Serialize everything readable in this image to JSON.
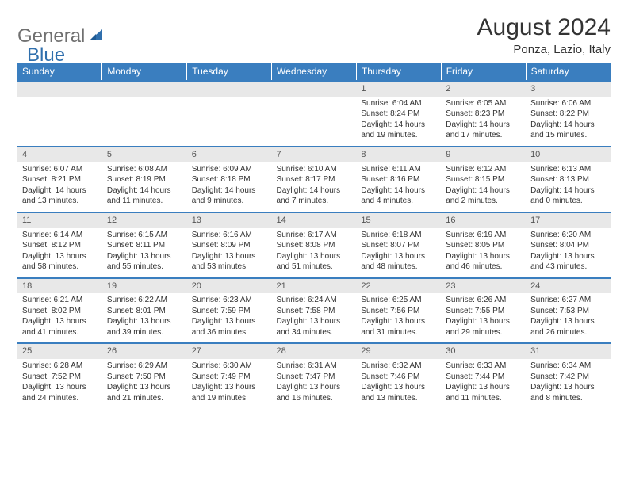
{
  "brand": {
    "part1": "General",
    "part2": "Blue"
  },
  "title": "August 2024",
  "location": "Ponza, Lazio, Italy",
  "colors": {
    "header_bg": "#3a7ebf",
    "header_text": "#ffffff",
    "daynum_bg": "#e8e8e8",
    "row_border": "#3a7ebf",
    "text": "#333333",
    "logo_gray": "#707070",
    "logo_blue": "#2f6fad"
  },
  "weekdays": [
    "Sunday",
    "Monday",
    "Tuesday",
    "Wednesday",
    "Thursday",
    "Friday",
    "Saturday"
  ],
  "weeks": [
    {
      "nums": [
        "",
        "",
        "",
        "",
        "1",
        "2",
        "3"
      ],
      "cells": [
        null,
        null,
        null,
        null,
        {
          "sr": "6:04 AM",
          "ss": "8:24 PM",
          "dl": "14 hours and 19 minutes."
        },
        {
          "sr": "6:05 AM",
          "ss": "8:23 PM",
          "dl": "14 hours and 17 minutes."
        },
        {
          "sr": "6:06 AM",
          "ss": "8:22 PM",
          "dl": "14 hours and 15 minutes."
        }
      ]
    },
    {
      "nums": [
        "4",
        "5",
        "6",
        "7",
        "8",
        "9",
        "10"
      ],
      "cells": [
        {
          "sr": "6:07 AM",
          "ss": "8:21 PM",
          "dl": "14 hours and 13 minutes."
        },
        {
          "sr": "6:08 AM",
          "ss": "8:19 PM",
          "dl": "14 hours and 11 minutes."
        },
        {
          "sr": "6:09 AM",
          "ss": "8:18 PM",
          "dl": "14 hours and 9 minutes."
        },
        {
          "sr": "6:10 AM",
          "ss": "8:17 PM",
          "dl": "14 hours and 7 minutes."
        },
        {
          "sr": "6:11 AM",
          "ss": "8:16 PM",
          "dl": "14 hours and 4 minutes."
        },
        {
          "sr": "6:12 AM",
          "ss": "8:15 PM",
          "dl": "14 hours and 2 minutes."
        },
        {
          "sr": "6:13 AM",
          "ss": "8:13 PM",
          "dl": "14 hours and 0 minutes."
        }
      ]
    },
    {
      "nums": [
        "11",
        "12",
        "13",
        "14",
        "15",
        "16",
        "17"
      ],
      "cells": [
        {
          "sr": "6:14 AM",
          "ss": "8:12 PM",
          "dl": "13 hours and 58 minutes."
        },
        {
          "sr": "6:15 AM",
          "ss": "8:11 PM",
          "dl": "13 hours and 55 minutes."
        },
        {
          "sr": "6:16 AM",
          "ss": "8:09 PM",
          "dl": "13 hours and 53 minutes."
        },
        {
          "sr": "6:17 AM",
          "ss": "8:08 PM",
          "dl": "13 hours and 51 minutes."
        },
        {
          "sr": "6:18 AM",
          "ss": "8:07 PM",
          "dl": "13 hours and 48 minutes."
        },
        {
          "sr": "6:19 AM",
          "ss": "8:05 PM",
          "dl": "13 hours and 46 minutes."
        },
        {
          "sr": "6:20 AM",
          "ss": "8:04 PM",
          "dl": "13 hours and 43 minutes."
        }
      ]
    },
    {
      "nums": [
        "18",
        "19",
        "20",
        "21",
        "22",
        "23",
        "24"
      ],
      "cells": [
        {
          "sr": "6:21 AM",
          "ss": "8:02 PM",
          "dl": "13 hours and 41 minutes."
        },
        {
          "sr": "6:22 AM",
          "ss": "8:01 PM",
          "dl": "13 hours and 39 minutes."
        },
        {
          "sr": "6:23 AM",
          "ss": "7:59 PM",
          "dl": "13 hours and 36 minutes."
        },
        {
          "sr": "6:24 AM",
          "ss": "7:58 PM",
          "dl": "13 hours and 34 minutes."
        },
        {
          "sr": "6:25 AM",
          "ss": "7:56 PM",
          "dl": "13 hours and 31 minutes."
        },
        {
          "sr": "6:26 AM",
          "ss": "7:55 PM",
          "dl": "13 hours and 29 minutes."
        },
        {
          "sr": "6:27 AM",
          "ss": "7:53 PM",
          "dl": "13 hours and 26 minutes."
        }
      ]
    },
    {
      "nums": [
        "25",
        "26",
        "27",
        "28",
        "29",
        "30",
        "31"
      ],
      "cells": [
        {
          "sr": "6:28 AM",
          "ss": "7:52 PM",
          "dl": "13 hours and 24 minutes."
        },
        {
          "sr": "6:29 AM",
          "ss": "7:50 PM",
          "dl": "13 hours and 21 minutes."
        },
        {
          "sr": "6:30 AM",
          "ss": "7:49 PM",
          "dl": "13 hours and 19 minutes."
        },
        {
          "sr": "6:31 AM",
          "ss": "7:47 PM",
          "dl": "13 hours and 16 minutes."
        },
        {
          "sr": "6:32 AM",
          "ss": "7:46 PM",
          "dl": "13 hours and 13 minutes."
        },
        {
          "sr": "6:33 AM",
          "ss": "7:44 PM",
          "dl": "13 hours and 11 minutes."
        },
        {
          "sr": "6:34 AM",
          "ss": "7:42 PM",
          "dl": "13 hours and 8 minutes."
        }
      ]
    }
  ],
  "labels": {
    "sunrise": "Sunrise:",
    "sunset": "Sunset:",
    "daylight": "Daylight:"
  }
}
